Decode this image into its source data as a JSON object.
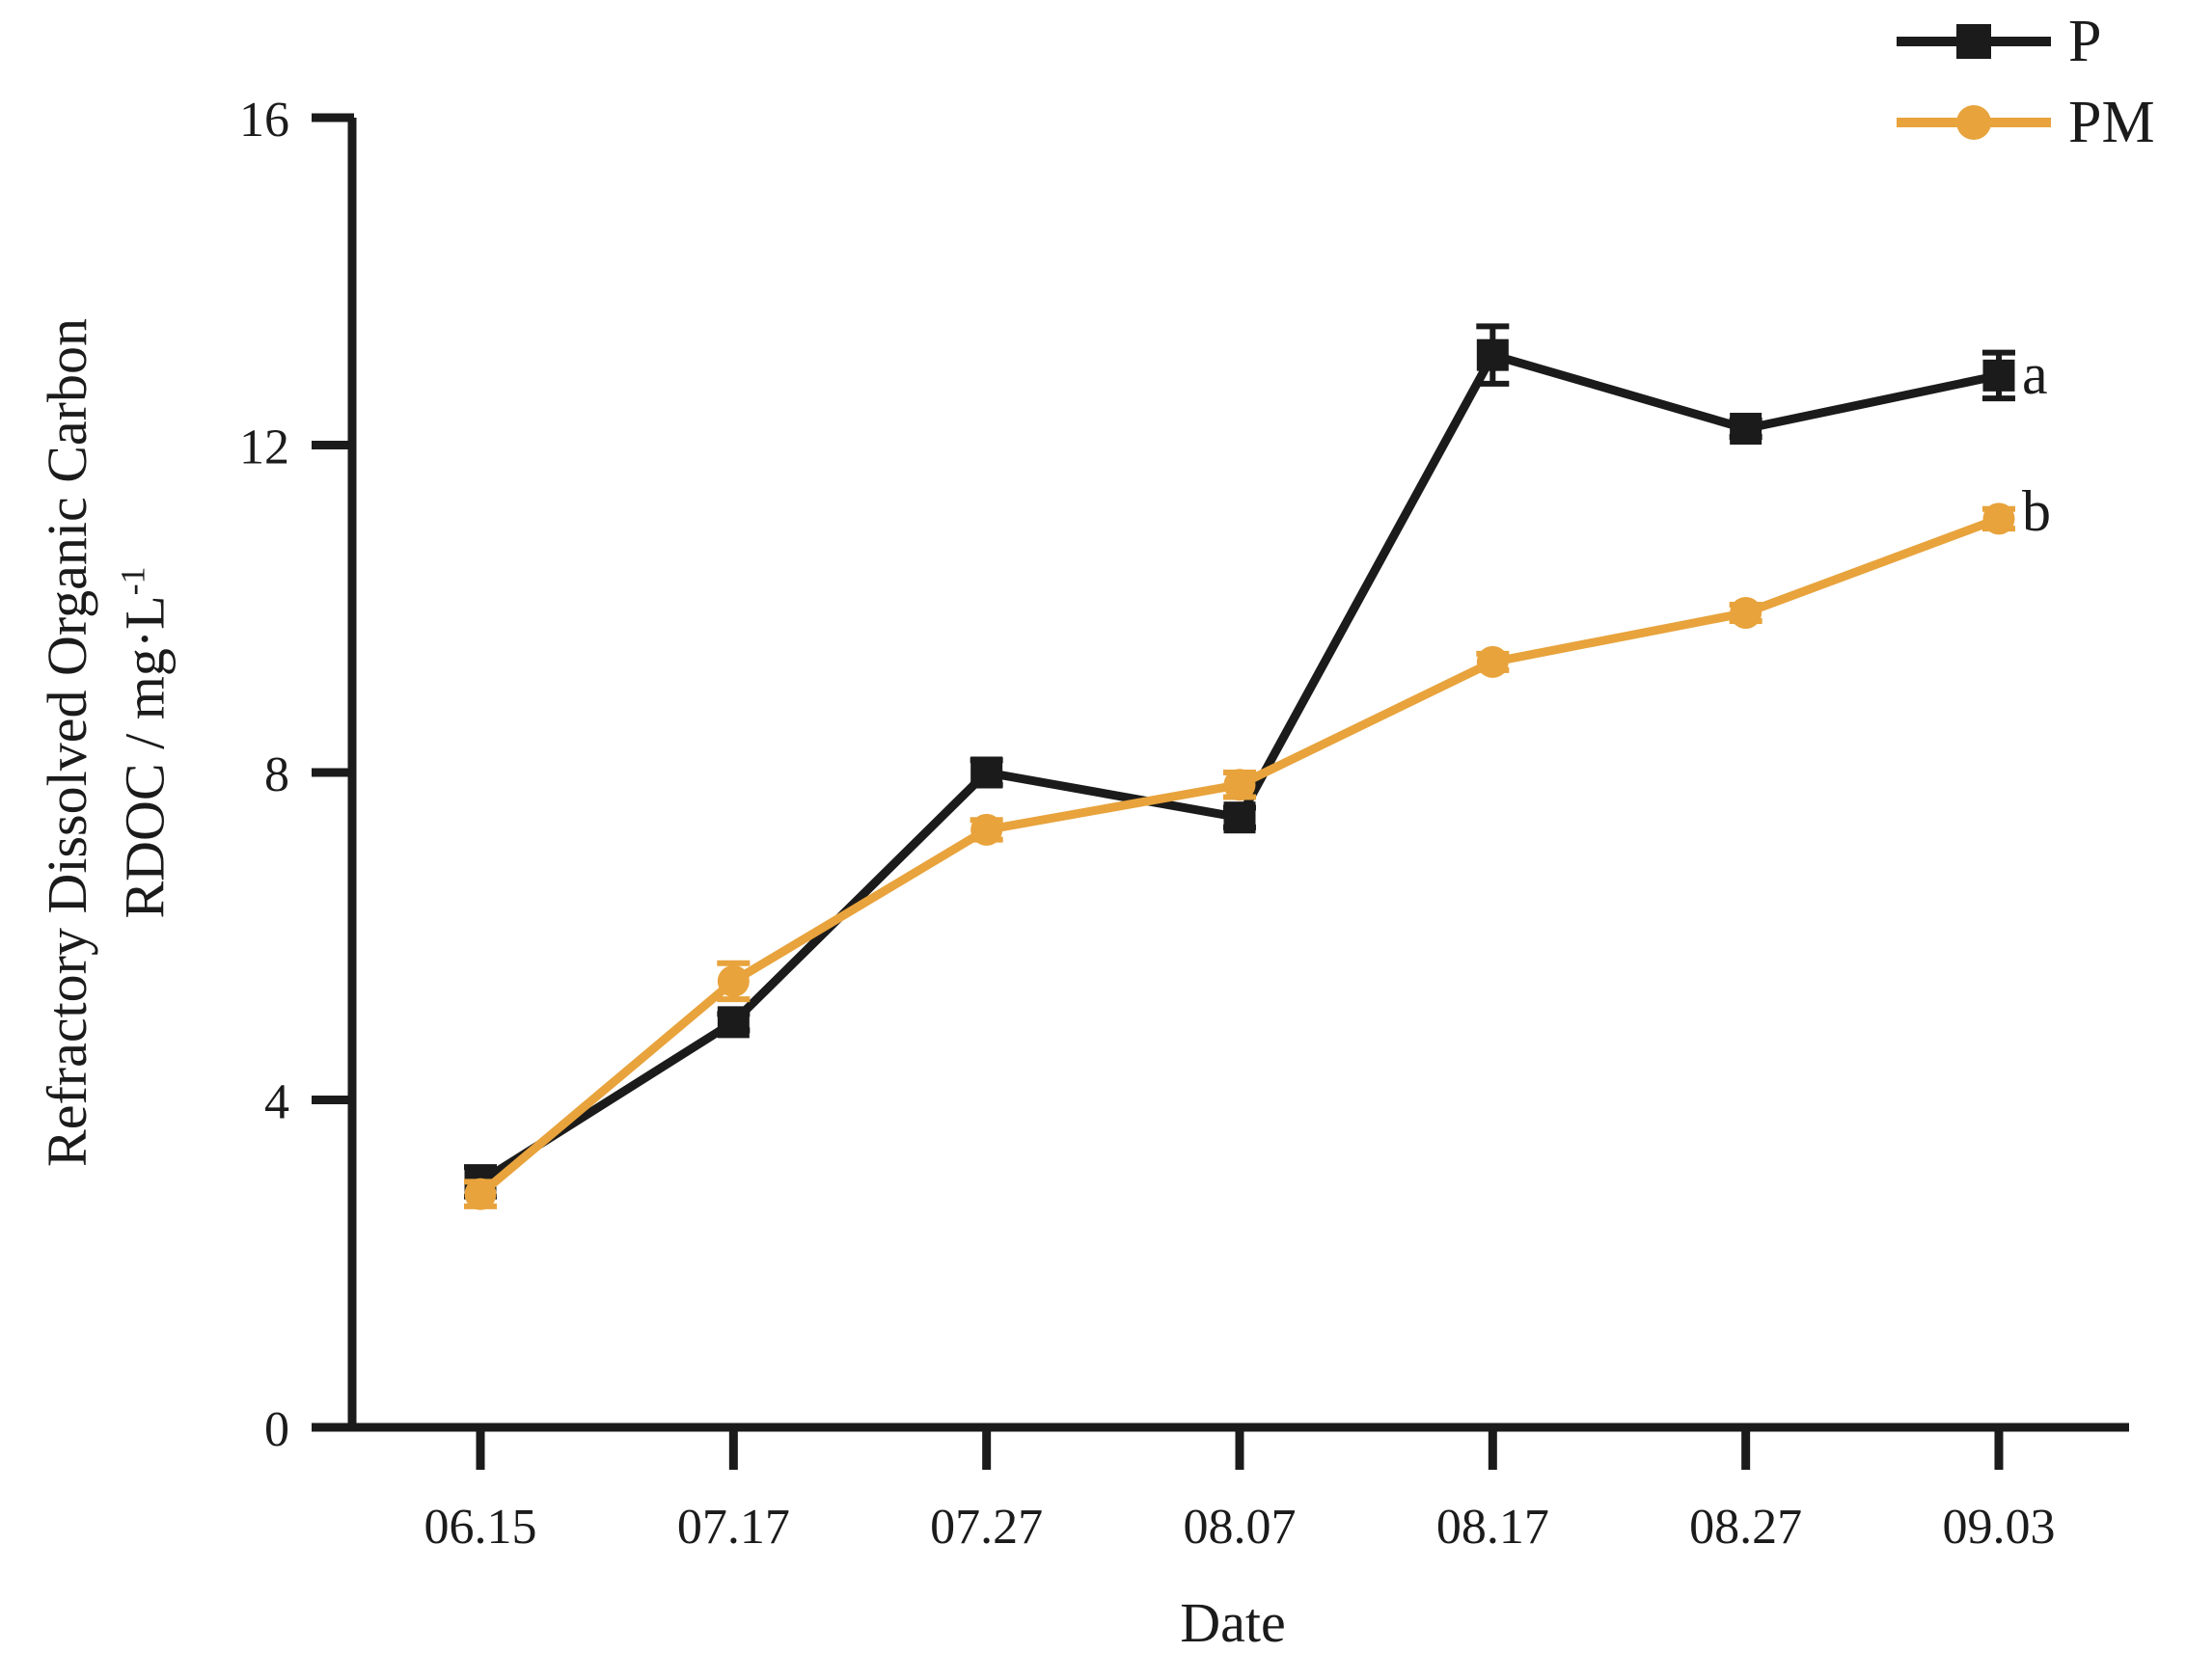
{
  "chart_data": {
    "type": "line",
    "title": "",
    "xlabel": "Date",
    "ylabel": "Refractory Dissolved Organic Carbon RDOC / mg·L⁻¹",
    "ylabel_line1": "Refractory Dissolved Organic Carbon",
    "ylabel_line2_base": "RDOC / mg·L",
    "ylabel_line2_sup": "-1",
    "categories": [
      "06.15",
      "07.17",
      "07.27",
      "08.07",
      "08.17",
      "08.27",
      "09.03"
    ],
    "ylim": [
      0,
      16
    ],
    "yticks": [
      0,
      4,
      8,
      12,
      16
    ],
    "grid": false,
    "legend_position": "top-right",
    "axis_color": "#1b1b1b",
    "series": [
      {
        "name": "P",
        "color": "#1b1b1b",
        "marker": "square",
        "values": [
          3.0,
          4.95,
          8.0,
          7.45,
          13.1,
          12.2,
          12.85
        ],
        "errors": [
          0.18,
          0.1,
          0.15,
          0.12,
          0.35,
          0.1,
          0.28
        ],
        "end_annotation": "a"
      },
      {
        "name": "PM",
        "color": "#E8A33C",
        "marker": "circle",
        "values": [
          2.85,
          5.45,
          7.3,
          7.85,
          9.35,
          9.95,
          11.1
        ],
        "errors": [
          0.15,
          0.22,
          0.12,
          0.15,
          0.1,
          0.1,
          0.12
        ],
        "end_annotation": "b"
      }
    ],
    "annotations": [
      {
        "text": "a",
        "series": "P"
      },
      {
        "text": "b",
        "series": "PM"
      }
    ]
  }
}
